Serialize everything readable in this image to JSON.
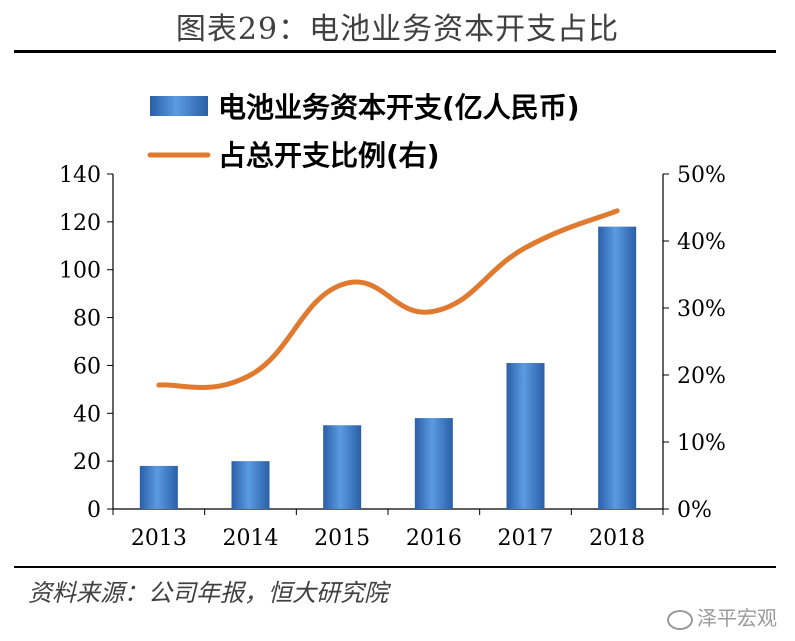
{
  "title": "图表29：电池业务资本开支占比",
  "source": "资料来源：公司年报，恒大研究院",
  "watermark": "泽平宏观",
  "colors": {
    "bar": "#3a78c2",
    "line": "#e07a2f",
    "axis": "#000000"
  },
  "chart_data": {
    "type": "bar",
    "categories": [
      "2013",
      "2014",
      "2015",
      "2016",
      "2017",
      "2018"
    ],
    "series": [
      {
        "name": "电池业务资本开支(亿人民币)",
        "type": "bar",
        "axis": "left",
        "values": [
          18,
          20,
          35,
          38,
          61,
          118
        ]
      },
      {
        "name": "占总开支比例(右)",
        "type": "line",
        "axis": "right",
        "values": [
          0.185,
          0.2,
          0.335,
          0.295,
          0.39,
          0.445
        ]
      }
    ],
    "y_left": {
      "min": 0,
      "max": 140,
      "ticks": [
        "0",
        "20",
        "40",
        "60",
        "80",
        "100",
        "120",
        "140"
      ]
    },
    "y_right": {
      "min": 0,
      "max": 0.5,
      "ticks": [
        "0%",
        "10%",
        "20%",
        "30%",
        "40%",
        "50%"
      ]
    },
    "legend_placement": "top-left",
    "grid": false
  }
}
